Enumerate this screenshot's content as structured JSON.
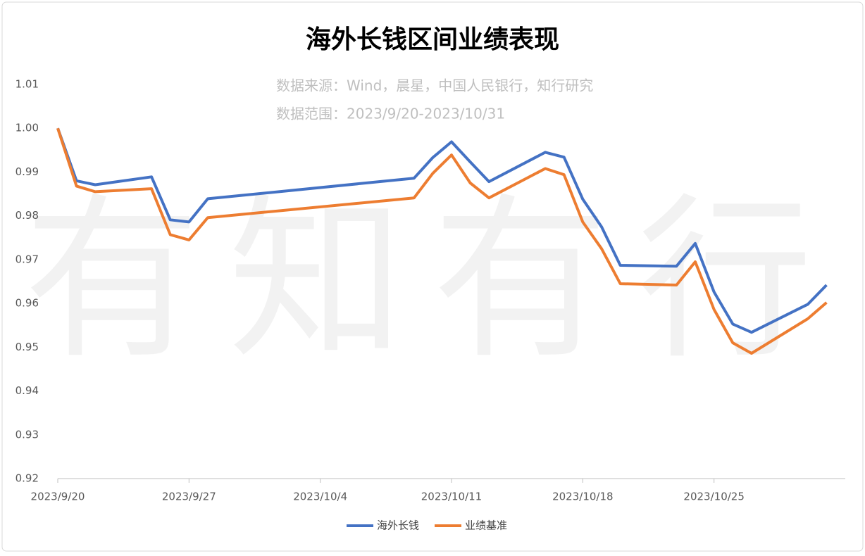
{
  "chart_data": {
    "type": "line",
    "title": "海外长钱区间业绩表现",
    "subtitle": [
      "数据来源：Wind，晨星，中国人民银行，知行研究",
      "数据范围：2023/9/20-2023/10/31"
    ],
    "watermark": "有知有行",
    "x": [
      "2023/9/20",
      "2023/9/21",
      "2023/9/22",
      "2023/9/25",
      "2023/9/26",
      "2023/9/27",
      "2023/9/28",
      "2023/10/9",
      "2023/10/10",
      "2023/10/11",
      "2023/10/12",
      "2023/10/13",
      "2023/10/16",
      "2023/10/17",
      "2023/10/18",
      "2023/10/19",
      "2023/10/20",
      "2023/10/23",
      "2023/10/24",
      "2023/10/25",
      "2023/10/26",
      "2023/10/27",
      "2023/10/30",
      "2023/10/31"
    ],
    "series": [
      {
        "name": "海外长钱",
        "color": "#4472c4",
        "values": [
          1.0,
          0.988,
          0.9871,
          0.9889,
          0.9791,
          0.9786,
          0.9839,
          0.9886,
          0.9933,
          0.9969,
          0.9923,
          0.9878,
          0.9945,
          0.9934,
          0.9838,
          0.9775,
          0.9687,
          0.9685,
          0.9737,
          0.9626,
          0.9553,
          0.9534,
          0.9598,
          0.9642
        ]
      },
      {
        "name": "业绩基准",
        "color": "#ed7d31",
        "values": [
          1.0,
          0.9868,
          0.9855,
          0.9862,
          0.9757,
          0.9745,
          0.9796,
          0.9841,
          0.9897,
          0.9939,
          0.9875,
          0.9841,
          0.9908,
          0.9894,
          0.9786,
          0.9725,
          0.9645,
          0.9642,
          0.9695,
          0.9586,
          0.951,
          0.9486,
          0.9565,
          0.9602
        ]
      }
    ],
    "xlim": [
      "2023/9/20",
      "2023/11/1"
    ],
    "xticks": [
      "2023/9/20",
      "2023/9/27",
      "2023/10/4",
      "2023/10/11",
      "2023/10/18",
      "2023/10/25"
    ],
    "ylim": [
      0.92,
      1.01
    ],
    "yticks": [
      0.92,
      0.93,
      0.94,
      0.95,
      0.96,
      0.97,
      0.98,
      0.99,
      {
        "value": 1,
        "label": "1.00"
      },
      1.01
    ],
    "grid": false,
    "legend": "bottom"
  }
}
